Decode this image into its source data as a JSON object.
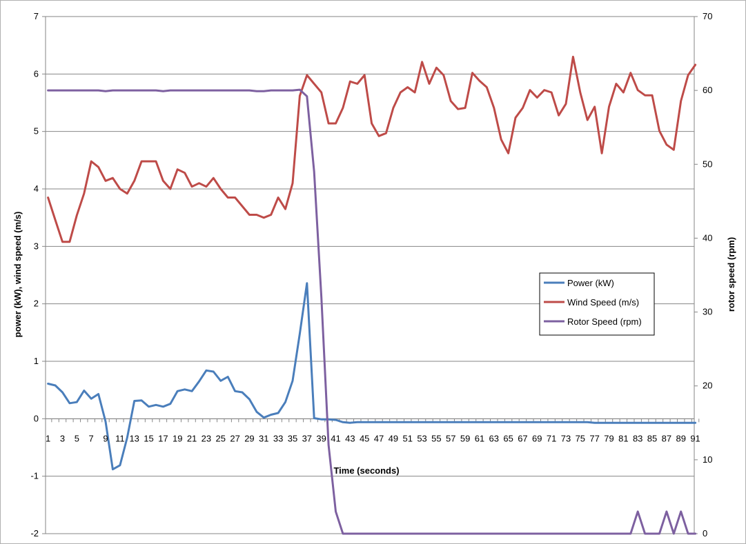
{
  "chart_data": {
    "type": "line",
    "title": "",
    "xlabel": "Time (seconds)",
    "ylabel_left": "power (kW), wind speed (m/s)",
    "ylabel_right": "rotor speed (rpm)",
    "ylim_left": [
      -2,
      7
    ],
    "ylim_right": [
      0,
      70
    ],
    "yticks_left": [
      -2,
      -1,
      0,
      1,
      2,
      3,
      4,
      5,
      6,
      7
    ],
    "yticks_right": [
      0,
      10,
      20,
      30,
      40,
      50,
      60,
      70
    ],
    "grid": true,
    "legend_position": "right",
    "x": [
      1,
      2,
      3,
      4,
      5,
      6,
      7,
      8,
      9,
      10,
      11,
      12,
      13,
      14,
      15,
      16,
      17,
      18,
      19,
      20,
      21,
      22,
      23,
      24,
      25,
      26,
      27,
      28,
      29,
      30,
      31,
      32,
      33,
      34,
      35,
      36,
      37,
      38,
      39,
      40,
      41,
      42,
      43,
      44,
      45,
      46,
      47,
      48,
      49,
      50,
      51,
      52,
      53,
      54,
      55,
      56,
      57,
      58,
      59,
      60,
      61,
      62,
      63,
      64,
      65,
      66,
      67,
      68,
      69,
      70,
      71,
      72,
      73,
      74,
      75,
      76,
      77,
      78,
      79,
      80,
      81,
      82,
      83,
      84,
      85,
      86,
      87,
      88,
      89,
      90,
      91
    ],
    "xtick_labels": [
      "1",
      "3",
      "5",
      "7",
      "9",
      "11",
      "13",
      "15",
      "17",
      "19",
      "21",
      "23",
      "25",
      "27",
      "29",
      "31",
      "33",
      "35",
      "37",
      "39",
      "41",
      "43",
      "45",
      "47",
      "49",
      "51",
      "53",
      "55",
      "57",
      "59",
      "61",
      "63",
      "65",
      "67",
      "69",
      "71",
      "73",
      "75",
      "77",
      "79",
      "81",
      "83",
      "85",
      "87",
      "89",
      "91"
    ],
    "series": [
      {
        "name": "Power (kW)",
        "axis": "left",
        "color": "#4a7ebb",
        "values": [
          0.61,
          0.58,
          0.46,
          0.27,
          0.29,
          0.49,
          0.35,
          0.43,
          -0.05,
          -0.88,
          -0.81,
          -0.33,
          0.31,
          0.32,
          0.21,
          0.24,
          0.21,
          0.26,
          0.48,
          0.51,
          0.48,
          0.65,
          0.84,
          0.82,
          0.66,
          0.73,
          0.48,
          0.46,
          0.34,
          0.12,
          0.02,
          0.07,
          0.1,
          0.29,
          0.66,
          1.48,
          2.36,
          0.01,
          -0.01,
          -0.01,
          -0.02,
          -0.06,
          -0.07,
          -0.06,
          -0.06,
          -0.06,
          -0.06,
          -0.06,
          -0.06,
          -0.06,
          -0.06,
          -0.06,
          -0.06,
          -0.06,
          -0.06,
          -0.06,
          -0.06,
          -0.06,
          -0.06,
          -0.06,
          -0.06,
          -0.06,
          -0.06,
          -0.06,
          -0.06,
          -0.06,
          -0.06,
          -0.06,
          -0.06,
          -0.06,
          -0.06,
          -0.06,
          -0.06,
          -0.06,
          -0.06,
          -0.06,
          -0.07,
          -0.07,
          -0.07,
          -0.07,
          -0.07,
          -0.07,
          -0.07,
          -0.07,
          -0.07,
          -0.07,
          -0.07,
          -0.07,
          -0.07,
          -0.07,
          -0.07
        ]
      },
      {
        "name": "Wind Speed (m/s)",
        "axis": "left",
        "color": "#be4b48",
        "values": [
          3.85,
          3.46,
          3.08,
          3.08,
          3.54,
          3.92,
          4.48,
          4.38,
          4.14,
          4.19,
          4.0,
          3.92,
          4.14,
          4.48,
          4.48,
          4.48,
          4.14,
          4.0,
          4.34,
          4.28,
          4.04,
          4.1,
          4.04,
          4.19,
          4.0,
          3.85,
          3.85,
          3.7,
          3.55,
          3.55,
          3.5,
          3.55,
          3.85,
          3.65,
          4.1,
          5.62,
          5.98,
          5.83,
          5.68,
          5.14,
          5.14,
          5.41,
          5.87,
          5.83,
          5.98,
          5.14,
          4.92,
          4.97,
          5.41,
          5.68,
          5.77,
          5.68,
          6.21,
          5.83,
          6.11,
          5.98,
          5.53,
          5.39,
          5.41,
          6.02,
          5.88,
          5.77,
          5.41,
          4.86,
          4.62,
          5.24,
          5.41,
          5.72,
          5.59,
          5.72,
          5.68,
          5.28,
          5.48,
          6.3,
          5.68,
          5.2,
          5.43,
          4.62,
          5.43,
          5.83,
          5.68,
          6.02,
          5.72,
          5.63,
          5.63,
          5.01,
          4.77,
          4.68,
          5.53,
          5.98,
          6.16
        ]
      },
      {
        "name": "Rotor Speed (rpm)",
        "axis": "right",
        "color": "#7d60a0",
        "values": [
          60.0,
          60.0,
          60.0,
          60.0,
          60.0,
          60.0,
          60.0,
          60.0,
          59.9,
          60.0,
          60.0,
          60.0,
          60.0,
          60.0,
          60.0,
          60.0,
          59.9,
          60.0,
          60.0,
          60.0,
          60.0,
          60.0,
          60.0,
          60.0,
          60.0,
          60.0,
          60.0,
          60.0,
          60.0,
          59.9,
          59.9,
          60.0,
          60.0,
          60.0,
          60.0,
          60.1,
          59.2,
          49.0,
          32.0,
          12.0,
          3.0,
          0.0,
          0.0,
          0.0,
          0.0,
          0.0,
          0.0,
          0.0,
          0.0,
          0.0,
          0.0,
          0.0,
          0.0,
          0.0,
          0.0,
          0.0,
          0.0,
          0.0,
          0.0,
          0.0,
          0.0,
          0.0,
          0.0,
          0.0,
          0.0,
          0.0,
          0.0,
          0.0,
          0.0,
          0.0,
          0.0,
          0.0,
          0.0,
          0.0,
          0.0,
          0.0,
          0.0,
          0.0,
          0.0,
          0.0,
          0.0,
          0.0,
          3.0,
          0.0,
          0.0,
          0.0,
          3.0,
          0.0,
          3.0,
          0.0,
          0.0
        ]
      }
    ]
  }
}
